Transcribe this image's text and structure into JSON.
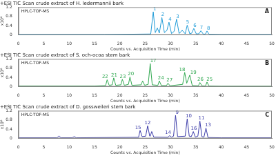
{
  "chart_data": [
    {
      "type": "line",
      "title": "+ESI TIC Scan crude extract of H. ledermannii bark",
      "subtitle": "HPLC-TOF-MS",
      "panel_label": "A",
      "xlabel": "Counts vs. Acquisition Time (min)",
      "ylabel": "x10⁶",
      "color": "#1f9bd7",
      "grid": false,
      "xlim": [
        0,
        50
      ],
      "xticks": [
        0,
        5,
        10,
        15,
        20,
        25,
        30,
        35,
        40,
        45,
        50
      ],
      "ylim": [
        0,
        1.2
      ],
      "yticks": [
        0,
        0.4,
        0.8,
        1.2
      ],
      "x": [
        0,
        17,
        26.1,
        26.6,
        27.0,
        27.4,
        27.8,
        28.3,
        28.8,
        29.3,
        29.7,
        30.2,
        30.7,
        31.2,
        31.7,
        32.3,
        32.9,
        33.3,
        33.8,
        34.2,
        34.6,
        35.1,
        35.6,
        36.0,
        36.5,
        36.9,
        37.2,
        37.6,
        40,
        50
      ],
      "values": [
        0.02,
        0.02,
        0.04,
        1.0,
        0.1,
        0.3,
        0.08,
        0.75,
        0.1,
        0.2,
        0.55,
        0.06,
        0.15,
        0.68,
        0.06,
        0.2,
        0.05,
        0.42,
        0.05,
        0.08,
        0.28,
        0.04,
        0.05,
        0.18,
        0.03,
        0.04,
        0.17,
        0.03,
        0.02,
        0.02
      ],
      "annotations": [
        {
          "text": "1",
          "x": 26.9,
          "y": 1.12
        },
        {
          "text": "2",
          "x": 28.5,
          "y": 0.87
        },
        {
          "text": "4",
          "x": 29.9,
          "y": 0.67
        },
        {
          "text": "3",
          "x": 31.4,
          "y": 0.8
        },
        {
          "text": "5",
          "x": 33.4,
          "y": 0.54
        },
        {
          "text": "6",
          "x": 34.8,
          "y": 0.4
        },
        {
          "text": "7",
          "x": 36.1,
          "y": 0.3
        },
        {
          "text": "8",
          "x": 37.5,
          "y": 0.29
        }
      ]
    },
    {
      "type": "line",
      "title": "+ESI TIC Scan crude extract of S. och-ocoa stem bark",
      "subtitle": "HPLC-TOF-MS",
      "panel_label": "B",
      "xlabel": "Counts vs. Acquisition Time (min)",
      "ylabel": "x10⁶",
      "color": "#2fa84f",
      "grid": false,
      "xlim": [
        0,
        50
      ],
      "xticks": [
        0,
        5,
        10,
        15,
        20,
        25,
        30,
        35,
        40,
        45,
        50
      ],
      "ylim": [
        0,
        1.2
      ],
      "yticks": [
        0,
        0.4,
        0.8,
        1.2
      ],
      "x": [
        0,
        15,
        17.2,
        17.5,
        17.9,
        18.5,
        18.8,
        19.2,
        20.2,
        20.5,
        20.9,
        21.7,
        22.0,
        22.4,
        24.2,
        24.5,
        24.9,
        25.6,
        26.0,
        26.4,
        27.5,
        27.8,
        28.2,
        29.2,
        29.5,
        29.9,
        32.4,
        32.8,
        33.2,
        33.8,
        34.3,
        35.5,
        35.8,
        36.2,
        36.9,
        37.2,
        37.6,
        40,
        50
      ],
      "values": [
        0.03,
        0.03,
        0.05,
        0.3,
        0.06,
        0.08,
        0.38,
        0.06,
        0.08,
        0.32,
        0.06,
        0.1,
        0.42,
        0.06,
        0.08,
        0.25,
        0.06,
        0.1,
        1.0,
        0.08,
        0.06,
        0.25,
        0.05,
        0.05,
        0.15,
        0.04,
        0.1,
        0.62,
        0.15,
        0.5,
        0.05,
        0.04,
        0.18,
        0.04,
        0.03,
        0.2,
        0.03,
        0.02,
        0.02
      ],
      "annotations": [
        {
          "text": "22",
          "x": 17.1,
          "y": 0.42
        },
        {
          "text": "21",
          "x": 18.9,
          "y": 0.5
        },
        {
          "text": "23",
          "x": 20.6,
          "y": 0.44
        },
        {
          "text": "20",
          "x": 22.2,
          "y": 0.54
        },
        {
          "text": "17",
          "x": 26.6,
          "y": 1.12
        },
        {
          "text": "24",
          "x": 28.1,
          "y": 0.37
        },
        {
          "text": "27",
          "x": 29.8,
          "y": 0.27
        },
        {
          "text": "18",
          "x": 32.3,
          "y": 0.74
        },
        {
          "text": "19",
          "x": 34.5,
          "y": 0.62
        },
        {
          "text": "26",
          "x": 35.9,
          "y": 0.3
        },
        {
          "text": "25",
          "x": 37.7,
          "y": 0.32
        }
      ]
    },
    {
      "type": "line",
      "title": "+ESI TIC Scan crude extract of D. gossweileri stem bark",
      "subtitle": "HPLC-TOF-MS",
      "panel_label": "C",
      "xlabel": "Counts vs. Acquisition Time (min)",
      "ylabel": "x10⁶",
      "color": "#3a3aa8",
      "grid": false,
      "xlim": [
        0,
        50
      ],
      "xticks": [
        0,
        5,
        10,
        15,
        20,
        25,
        30,
        35,
        40,
        45,
        50
      ],
      "ylim": [
        0,
        1.2
      ],
      "yticks": [
        0,
        0.4,
        0.8,
        1.2
      ],
      "x": [
        0,
        7.6,
        8.0,
        8.4,
        10.6,
        11.0,
        11.4,
        23.7,
        24.0,
        24.4,
        25.1,
        25.5,
        25.9,
        26.0,
        26.3,
        26.7,
        29.5,
        29.8,
        30.2,
        30.6,
        31.0,
        31.4,
        32.9,
        33.3,
        33.7,
        34.1,
        34.5,
        34.9,
        35.4,
        35.8,
        36.2,
        36.6,
        37.0,
        37.4,
        40,
        50
      ],
      "values": [
        0.03,
        0.03,
        0.1,
        0.03,
        0.03,
        0.08,
        0.03,
        0.05,
        0.35,
        0.08,
        0.1,
        0.55,
        0.1,
        0.1,
        0.3,
        0.06,
        0.05,
        0.12,
        0.06,
        0.1,
        1.0,
        0.08,
        0.1,
        0.85,
        0.1,
        0.08,
        0.3,
        0.06,
        0.1,
        0.75,
        0.08,
        0.06,
        0.45,
        0.04,
        0.03,
        0.03
      ],
      "annotations": [
        {
          "text": "15",
          "x": 23.6,
          "y": 0.47
        },
        {
          "text": "12",
          "x": 25.5,
          "y": 0.67
        },
        {
          "text": "14",
          "x": 29.5,
          "y": 0.24
        },
        {
          "text": "9",
          "x": 31.3,
          "y": 1.12
        },
        {
          "text": "10",
          "x": 33.6,
          "y": 0.97
        },
        {
          "text": "16",
          "x": 34.6,
          "y": 0.42
        },
        {
          "text": "11",
          "x": 36.1,
          "y": 0.87
        },
        {
          "text": "13",
          "x": 37.4,
          "y": 0.57
        }
      ]
    }
  ]
}
